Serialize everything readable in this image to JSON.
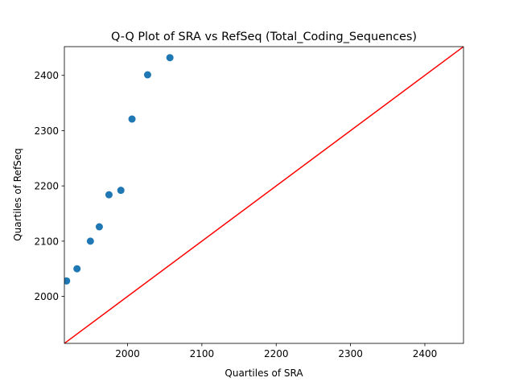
{
  "chart_data": {
    "type": "scatter",
    "title": "Q-Q Plot of SRA vs RefSeq (Total_Coding_Sequences)",
    "xlabel": "Quartiles of SRA",
    "ylabel": "Quartiles of RefSeq",
    "xlim": [
      1915,
      2452
    ],
    "ylim": [
      1915,
      2452
    ],
    "xticks": [
      2000,
      2100,
      2200,
      2300,
      2400
    ],
    "yticks": [
      2000,
      2100,
      2200,
      2300,
      2400
    ],
    "grid": false,
    "points": [
      {
        "x": 1918,
        "y": 2028
      },
      {
        "x": 1932,
        "y": 2050
      },
      {
        "x": 1950,
        "y": 2100
      },
      {
        "x": 1962,
        "y": 2126
      },
      {
        "x": 1975,
        "y": 2184
      },
      {
        "x": 1991,
        "y": 2192
      },
      {
        "x": 2006,
        "y": 2321
      },
      {
        "x": 2027,
        "y": 2401
      },
      {
        "x": 2057,
        "y": 2432
      }
    ],
    "reference_line": {
      "slope": 1,
      "intercept": 0
    },
    "colors": {
      "points": "#1f77b4",
      "reference_line": "#ff0000"
    }
  }
}
